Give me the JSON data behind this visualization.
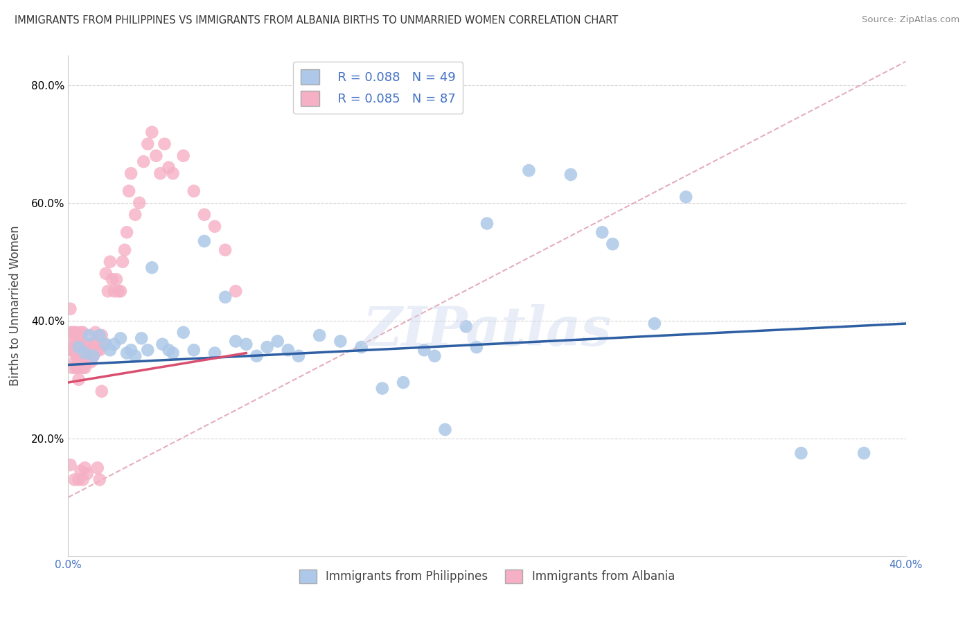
{
  "title": "IMMIGRANTS FROM PHILIPPINES VS IMMIGRANTS FROM ALBANIA BIRTHS TO UNMARRIED WOMEN CORRELATION CHART",
  "source": "Source: ZipAtlas.com",
  "ylabel": "Births to Unmarried Women",
  "xlabel_blue": "Immigrants from Philippines",
  "xlabel_pink": "Immigrants from Albania",
  "xlim": [
    0.0,
    0.4
  ],
  "ylim": [
    0.0,
    0.85
  ],
  "blue_R": 0.088,
  "blue_N": 49,
  "pink_R": 0.085,
  "pink_N": 87,
  "blue_color": "#adc8e8",
  "pink_color": "#f5b0c5",
  "blue_line_color": "#2e5fa3",
  "pink_line_color": "#d94f70",
  "dashed_line_color": "#e0a0b0",
  "watermark": "ZIPatlas",
  "blue_scatter_x": [
    0.005,
    0.008,
    0.01,
    0.012,
    0.015,
    0.018,
    0.02,
    0.022,
    0.025,
    0.028,
    0.03,
    0.032,
    0.035,
    0.038,
    0.04,
    0.045,
    0.048,
    0.05,
    0.055,
    0.06,
    0.065,
    0.07,
    0.075,
    0.08,
    0.085,
    0.09,
    0.095,
    0.1,
    0.105,
    0.11,
    0.12,
    0.13,
    0.14,
    0.15,
    0.16,
    0.17,
    0.175,
    0.18,
    0.19,
    0.195,
    0.2,
    0.22,
    0.24,
    0.255,
    0.26,
    0.28,
    0.295,
    0.35,
    0.38
  ],
  "blue_scatter_y": [
    0.355,
    0.345,
    0.375,
    0.34,
    0.375,
    0.36,
    0.35,
    0.36,
    0.37,
    0.345,
    0.35,
    0.34,
    0.37,
    0.35,
    0.49,
    0.36,
    0.35,
    0.345,
    0.38,
    0.35,
    0.535,
    0.345,
    0.44,
    0.365,
    0.36,
    0.34,
    0.355,
    0.365,
    0.35,
    0.34,
    0.375,
    0.365,
    0.355,
    0.285,
    0.295,
    0.35,
    0.34,
    0.215,
    0.39,
    0.355,
    0.565,
    0.655,
    0.648,
    0.55,
    0.53,
    0.395,
    0.61,
    0.175,
    0.175
  ],
  "pink_scatter_x": [
    0.001,
    0.001,
    0.001,
    0.001,
    0.002,
    0.002,
    0.002,
    0.002,
    0.003,
    0.003,
    0.003,
    0.003,
    0.003,
    0.004,
    0.004,
    0.004,
    0.004,
    0.004,
    0.004,
    0.005,
    0.005,
    0.005,
    0.005,
    0.005,
    0.005,
    0.006,
    0.006,
    0.006,
    0.006,
    0.006,
    0.007,
    0.007,
    0.007,
    0.007,
    0.007,
    0.008,
    0.008,
    0.008,
    0.008,
    0.009,
    0.009,
    0.009,
    0.01,
    0.01,
    0.01,
    0.011,
    0.011,
    0.012,
    0.012,
    0.013,
    0.013,
    0.014,
    0.014,
    0.015,
    0.015,
    0.016,
    0.016,
    0.017,
    0.018,
    0.019,
    0.02,
    0.021,
    0.022,
    0.023,
    0.024,
    0.025,
    0.026,
    0.027,
    0.028,
    0.029,
    0.03,
    0.032,
    0.034,
    0.036,
    0.038,
    0.04,
    0.042,
    0.044,
    0.046,
    0.048,
    0.05,
    0.055,
    0.06,
    0.065,
    0.07,
    0.075,
    0.08
  ],
  "pink_scatter_y": [
    0.35,
    0.38,
    0.42,
    0.155,
    0.36,
    0.38,
    0.32,
    0.35,
    0.33,
    0.36,
    0.38,
    0.35,
    0.13,
    0.32,
    0.34,
    0.36,
    0.38,
    0.32,
    0.35,
    0.33,
    0.36,
    0.34,
    0.32,
    0.3,
    0.13,
    0.35,
    0.33,
    0.36,
    0.38,
    0.145,
    0.32,
    0.34,
    0.36,
    0.38,
    0.13,
    0.34,
    0.32,
    0.35,
    0.15,
    0.33,
    0.36,
    0.14,
    0.34,
    0.35,
    0.36,
    0.33,
    0.35,
    0.34,
    0.36,
    0.38,
    0.36,
    0.35,
    0.15,
    0.35,
    0.13,
    0.28,
    0.375,
    0.36,
    0.48,
    0.45,
    0.5,
    0.47,
    0.45,
    0.47,
    0.45,
    0.45,
    0.5,
    0.52,
    0.55,
    0.62,
    0.65,
    0.58,
    0.6,
    0.67,
    0.7,
    0.72,
    0.68,
    0.65,
    0.7,
    0.66,
    0.65,
    0.68,
    0.62,
    0.58,
    0.56,
    0.52,
    0.45
  ],
  "blue_line_x0": 0.0,
  "blue_line_y0": 0.325,
  "blue_line_x1": 0.4,
  "blue_line_y1": 0.395,
  "pink_line_x0": 0.0,
  "pink_line_y0": 0.295,
  "pink_line_x1": 0.085,
  "pink_line_y1": 0.345,
  "dashed_line_x0": 0.0,
  "dashed_line_y0": 0.1,
  "dashed_line_x1": 0.4,
  "dashed_line_y1": 0.84
}
